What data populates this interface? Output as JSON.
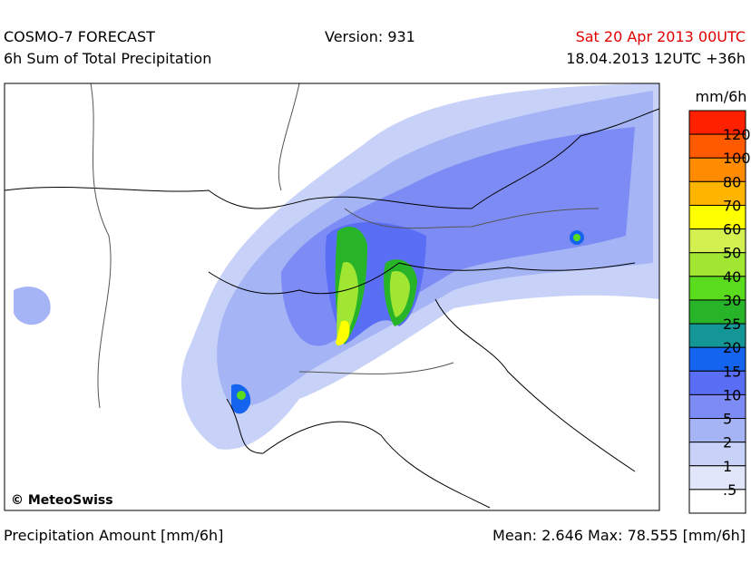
{
  "header": {
    "title": "COSMO-7 FORECAST",
    "subtitle": "6h Sum of Total Precipitation",
    "version": "Version: 931",
    "valid_time": "Sat 20 Apr 2013 00UTC",
    "run_time": "18.04.2013 12UTC +36h"
  },
  "map": {
    "copyright": "© MeteoSwiss"
  },
  "legend": {
    "unit": "mm/6h",
    "labels": [
      "120",
      "100",
      "80",
      "70",
      "60",
      "50",
      "40",
      "30",
      "25",
      "20",
      "15",
      "10",
      "5",
      "2",
      "1",
      ".5"
    ],
    "colors": [
      "#ff2000",
      "#ff5a00",
      "#ff8c00",
      "#ffb400",
      "#ffff00",
      "#d2f050",
      "#a0e632",
      "#5adc1e",
      "#28b428",
      "#149696",
      "#1464f0",
      "#5a6ef5",
      "#7d8cf5",
      "#a5b4f5",
      "#c8d2f8",
      "#e1e6fa",
      "#ffffff"
    ]
  },
  "footer": {
    "left": "Precipitation Amount [mm/6h]",
    "right": "Mean:  2.646 Max: 78.555 [mm/6h]"
  }
}
